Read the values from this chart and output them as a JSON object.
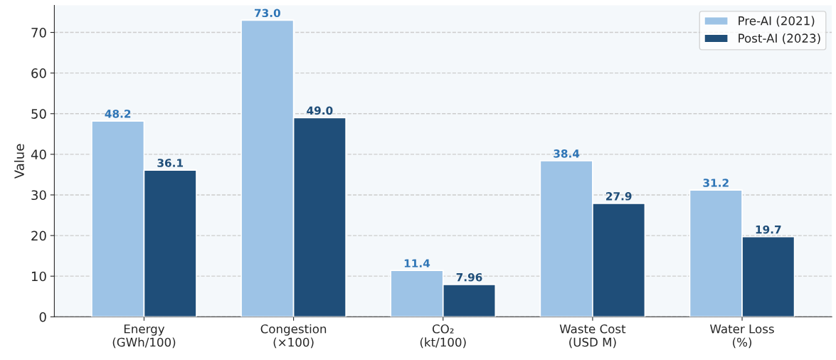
{
  "chart_data": {
    "type": "bar",
    "ylabel": "Value",
    "categories": [
      "Energy\n(GWh/100)",
      "Congestion\n(×100)",
      "CO₂\n(kt/100)",
      "Waste Cost\n(USD M)",
      "Water Loss\n(%)"
    ],
    "series": [
      {
        "name": "Pre-AI (2021)",
        "color": "#9dc3e6",
        "values": [
          48.2,
          73.0,
          11.4,
          38.4,
          31.2
        ],
        "value_labels": [
          "48.2",
          "73.0",
          "11.4",
          "38.4",
          "31.2"
        ]
      },
      {
        "name": "Post-AI (2023)",
        "color": "#1f4e79",
        "values": [
          36.1,
          49.0,
          7.96,
          27.9,
          19.7
        ],
        "value_labels": [
          "36.1",
          "49.0",
          "7.96",
          "27.9",
          "19.7"
        ]
      }
    ],
    "ylim": [
      0,
      76.65
    ],
    "yticks": [
      0,
      10,
      20,
      30,
      40,
      50,
      60,
      70
    ],
    "grid": "y",
    "legend": "top right"
  }
}
